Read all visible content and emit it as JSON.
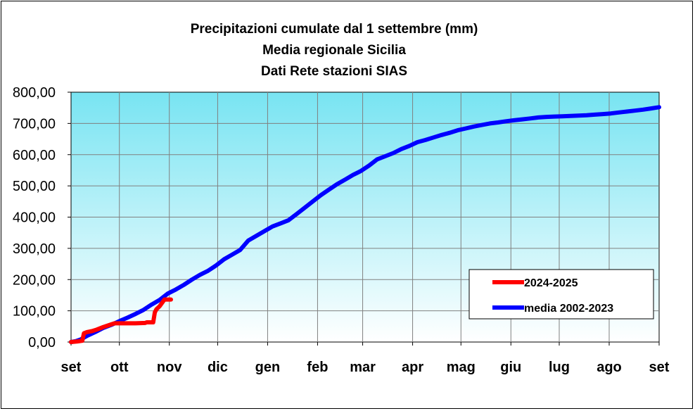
{
  "chart_data": {
    "type": "line",
    "title": [
      "Precipitazioni cumulate dal 1 settembre (mm)",
      "Media regionale Sicilia",
      "Dati Rete stazioni SIAS"
    ],
    "xlabel": "",
    "ylabel": "",
    "ylim": [
      0,
      800
    ],
    "yticks": [
      "0,00",
      "100,00",
      "200,00",
      "300,00",
      "400,00",
      "500,00",
      "600,00",
      "700,00",
      "800,00"
    ],
    "ytick_values": [
      0,
      100,
      200,
      300,
      400,
      500,
      600,
      700,
      800
    ],
    "x_unit": "day of hydrological year (day 0 = 1 settembre)",
    "xlim": [
      0,
      365
    ],
    "months": [
      {
        "label": "set",
        "day": 0
      },
      {
        "label": "ott",
        "day": 30
      },
      {
        "label": "nov",
        "day": 61
      },
      {
        "label": "dic",
        "day": 91
      },
      {
        "label": "gen",
        "day": 122
      },
      {
        "label": "feb",
        "day": 153
      },
      {
        "label": "mar",
        "day": 181
      },
      {
        "label": "apr",
        "day": 212
      },
      {
        "label": "mag",
        "day": 242
      },
      {
        "label": "giu",
        "day": 273
      },
      {
        "label": "lug",
        "day": 303
      },
      {
        "label": "ago",
        "day": 334
      },
      {
        "label": "set",
        "day": 365
      }
    ],
    "grid": true,
    "legend_position": "bottom-right",
    "series": [
      {
        "name": "2024-2025",
        "color": "#ff0000",
        "points": [
          [
            0,
            0
          ],
          [
            4,
            2
          ],
          [
            7,
            4
          ],
          [
            8,
            28
          ],
          [
            10,
            32
          ],
          [
            13,
            35
          ],
          [
            16,
            40
          ],
          [
            20,
            48
          ],
          [
            24,
            55
          ],
          [
            27,
            60
          ],
          [
            30,
            60
          ],
          [
            40,
            60
          ],
          [
            46,
            61
          ],
          [
            47,
            63
          ],
          [
            51,
            63
          ],
          [
            52,
            95
          ],
          [
            53,
            105
          ],
          [
            55,
            115
          ],
          [
            58,
            136
          ],
          [
            62,
            136
          ]
        ]
      },
      {
        "name": "media 2002-2023",
        "color": "#0000ff",
        "points": [
          [
            0,
            0
          ],
          [
            3,
            3
          ],
          [
            6,
            8
          ],
          [
            10,
            20
          ],
          [
            15,
            32
          ],
          [
            20,
            45
          ],
          [
            25,
            55
          ],
          [
            30,
            67
          ],
          [
            35,
            78
          ],
          [
            40,
            90
          ],
          [
            45,
            103
          ],
          [
            50,
            120
          ],
          [
            55,
            135
          ],
          [
            60,
            155
          ],
          [
            65,
            168
          ],
          [
            70,
            183
          ],
          [
            75,
            200
          ],
          [
            80,
            215
          ],
          [
            85,
            228
          ],
          [
            90,
            245
          ],
          [
            95,
            265
          ],
          [
            100,
            280
          ],
          [
            105,
            295
          ],
          [
            110,
            325
          ],
          [
            115,
            340
          ],
          [
            120,
            355
          ],
          [
            125,
            370
          ],
          [
            130,
            380
          ],
          [
            135,
            390
          ],
          [
            140,
            410
          ],
          [
            145,
            430
          ],
          [
            150,
            450
          ],
          [
            155,
            470
          ],
          [
            160,
            488
          ],
          [
            165,
            505
          ],
          [
            170,
            520
          ],
          [
            175,
            535
          ],
          [
            180,
            548
          ],
          [
            185,
            565
          ],
          [
            190,
            585
          ],
          [
            195,
            595
          ],
          [
            200,
            605
          ],
          [
            205,
            618
          ],
          [
            210,
            628
          ],
          [
            215,
            640
          ],
          [
            220,
            647
          ],
          [
            225,
            655
          ],
          [
            230,
            663
          ],
          [
            235,
            670
          ],
          [
            240,
            678
          ],
          [
            245,
            684
          ],
          [
            250,
            690
          ],
          [
            255,
            695
          ],
          [
            260,
            700
          ],
          [
            265,
            703
          ],
          [
            270,
            707
          ],
          [
            275,
            710
          ],
          [
            280,
            713
          ],
          [
            285,
            716
          ],
          [
            290,
            719
          ],
          [
            295,
            721
          ],
          [
            300,
            722
          ],
          [
            305,
            723
          ],
          [
            310,
            724
          ],
          [
            315,
            725
          ],
          [
            320,
            726
          ],
          [
            325,
            728
          ],
          [
            330,
            730
          ],
          [
            335,
            732
          ],
          [
            340,
            735
          ],
          [
            345,
            738
          ],
          [
            350,
            741
          ],
          [
            355,
            744
          ],
          [
            360,
            748
          ],
          [
            365,
            752
          ]
        ]
      }
    ]
  }
}
